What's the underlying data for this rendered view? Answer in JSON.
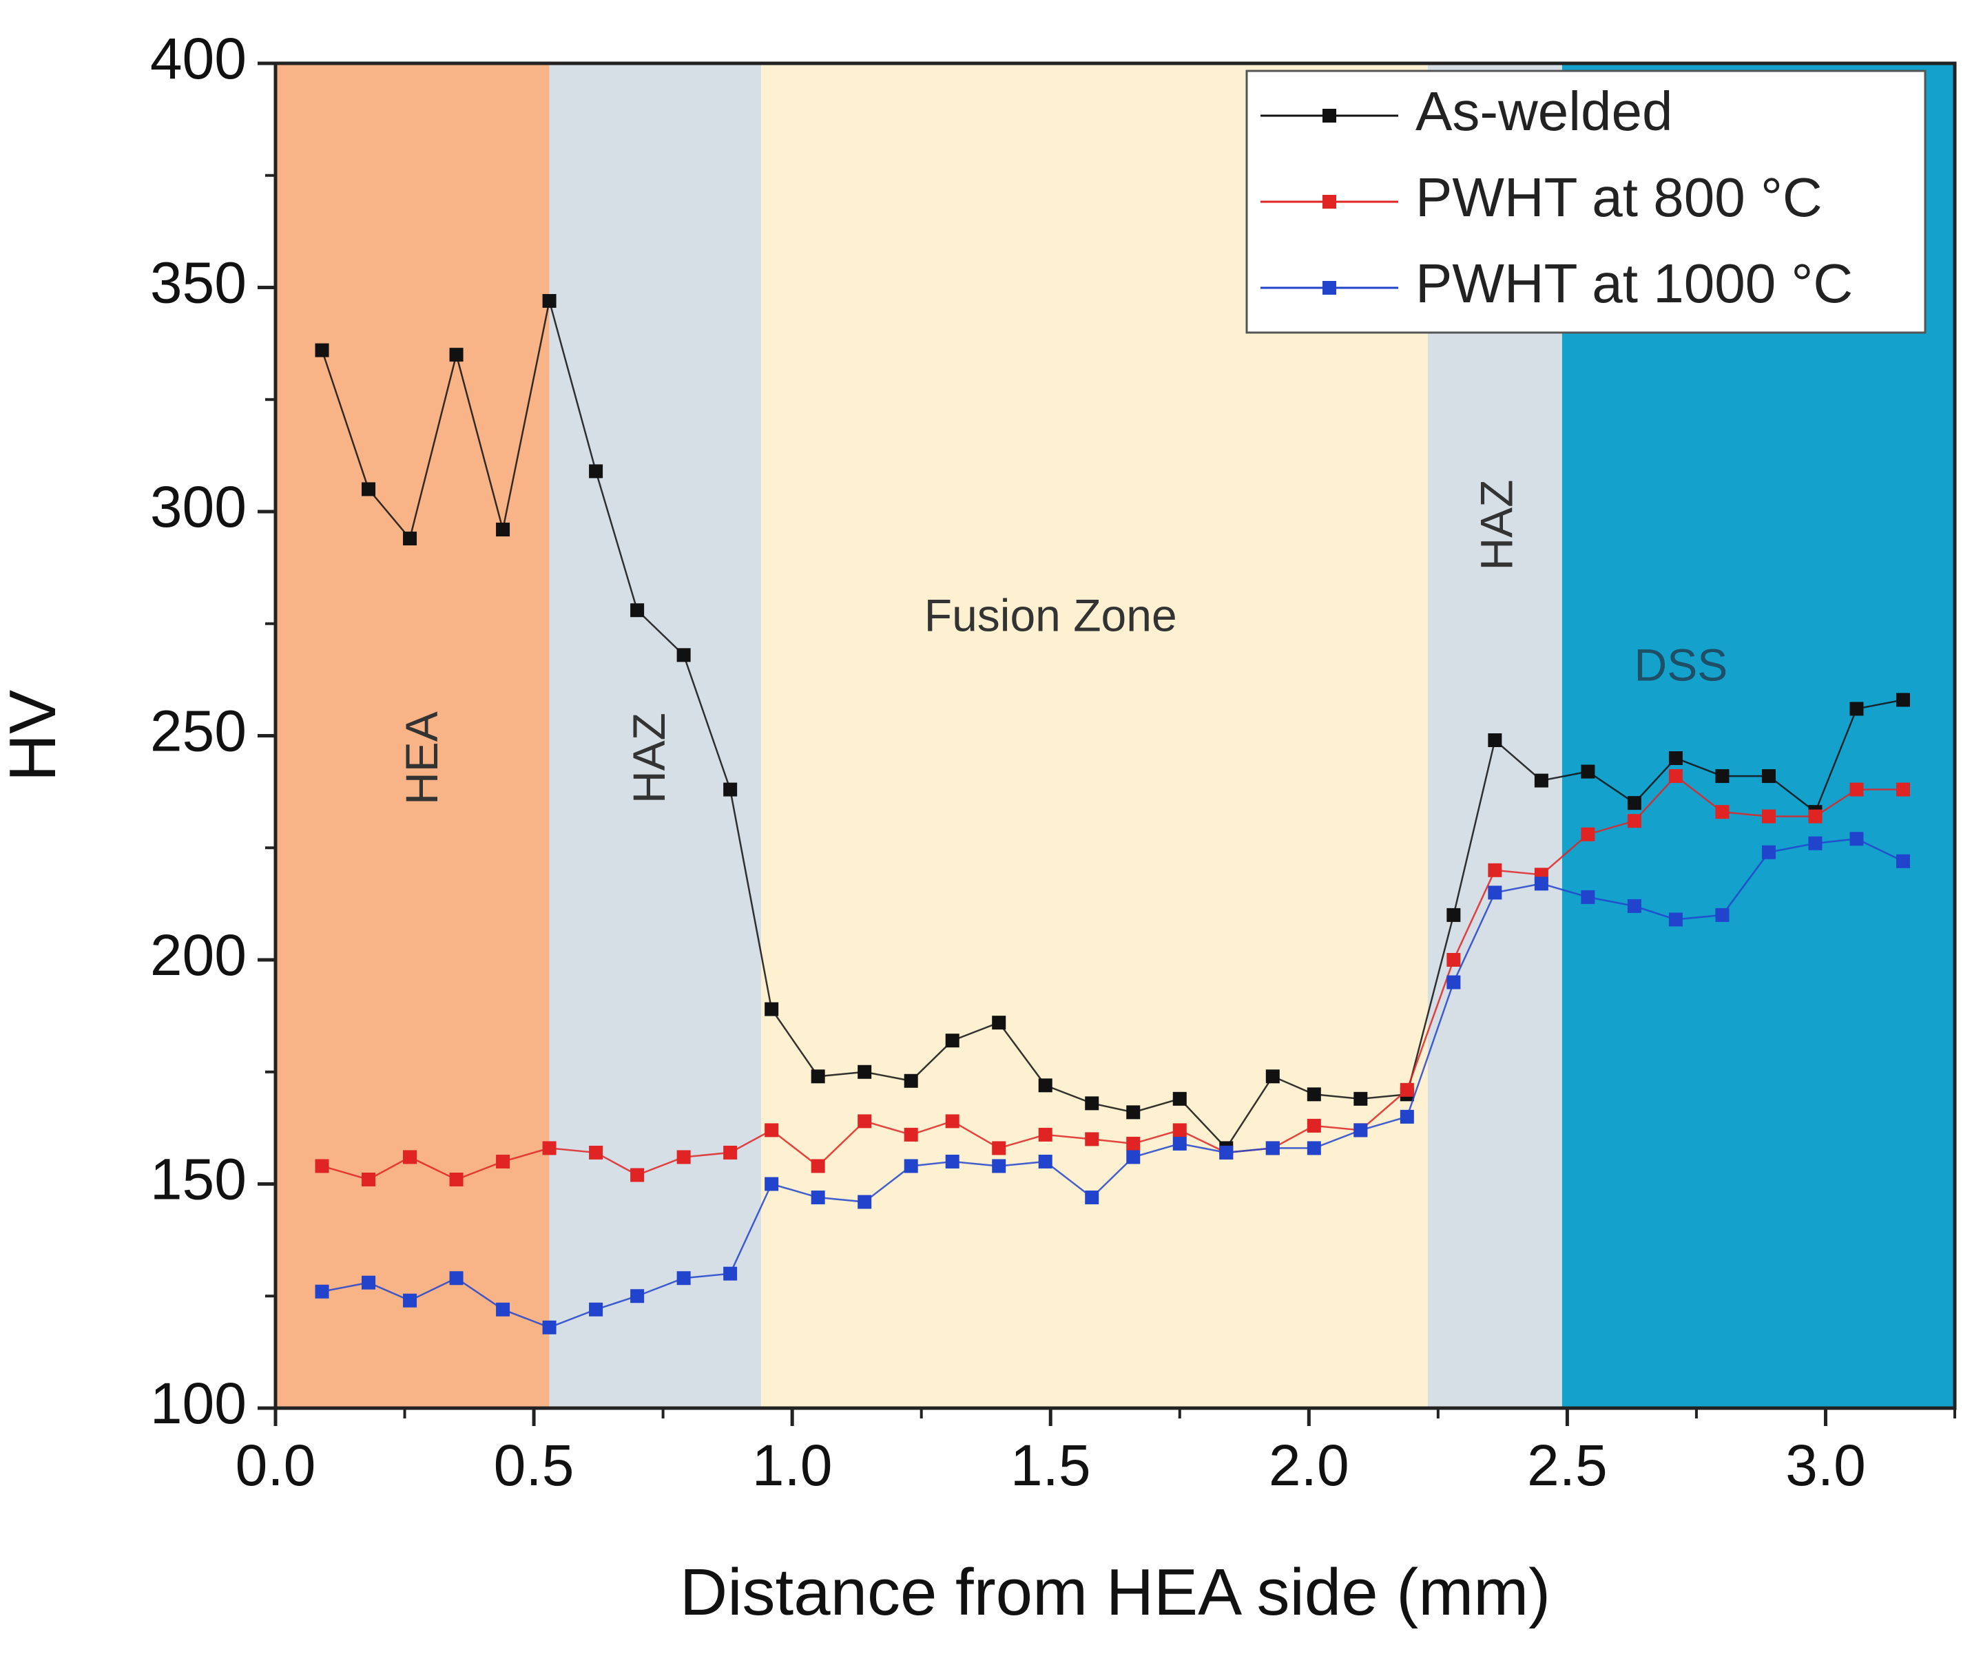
{
  "chart_data": {
    "type": "line",
    "title": "",
    "xlabel": "Distance from HEA side (mm)",
    "ylabel": "HV",
    "xlim": [
      0.0,
      3.25
    ],
    "ylim": [
      100,
      400
    ],
    "xticks": [
      0.0,
      0.5,
      1.0,
      1.5,
      2.0,
      2.5,
      3.0
    ],
    "xtick_labels": [
      "0.0",
      "0.5",
      "1.0",
      "1.5",
      "2.0",
      "2.5",
      "3.0"
    ],
    "yticks": [
      100,
      150,
      200,
      250,
      300,
      350,
      400
    ],
    "ytick_labels": [
      "100",
      "150",
      "200",
      "250",
      "300",
      "350",
      "400"
    ],
    "grid": false,
    "legend_position": "top-right",
    "regions": [
      {
        "label": "HEA",
        "x0": 0.0,
        "x1": 0.53,
        "color": "#f8b487",
        "label_x": 0.29,
        "label_y": 245,
        "vertical": true,
        "text_color": "#333333"
      },
      {
        "label": "HAZ",
        "x0": 0.53,
        "x1": 0.94,
        "color": "#d6dfe6",
        "label_x": 0.73,
        "label_y": 245,
        "vertical": true,
        "text_color": "#333333"
      },
      {
        "label": "Fusion Zone",
        "x0": 0.94,
        "x1": 2.23,
        "color": "#fdf1d2",
        "label_x": 1.5,
        "label_y": 276,
        "vertical": false,
        "text_color": "#333333"
      },
      {
        "label": "HAZ",
        "x0": 2.23,
        "x1": 2.49,
        "color": "#d6dfe6",
        "label_x": 2.37,
        "label_y": 297,
        "vertical": true,
        "text_color": "#333333"
      },
      {
        "label": "DSS",
        "x0": 2.49,
        "x1": 3.25,
        "color": "#14a1cc",
        "label_x": 2.72,
        "label_y": 265,
        "vertical": false,
        "text_color": "#1f4f66"
      }
    ],
    "x": [
      0.09,
      0.18,
      0.26,
      0.35,
      0.44,
      0.53,
      0.62,
      0.7,
      0.79,
      0.88,
      0.96,
      1.05,
      1.14,
      1.23,
      1.31,
      1.4,
      1.49,
      1.58,
      1.66,
      1.75,
      1.84,
      1.93,
      2.01,
      2.1,
      2.19,
      2.28,
      2.36,
      2.45,
      2.54,
      2.63,
      2.71,
      2.8,
      2.89,
      2.98,
      3.06,
      3.15
    ],
    "series": [
      {
        "name": "As-welded",
        "color": "#111111",
        "values": [
          336,
          305,
          294,
          335,
          296,
          347,
          309,
          278,
          268,
          238,
          189,
          174,
          175,
          173,
          182,
          186,
          172,
          168,
          166,
          169,
          158,
          174,
          170,
          169,
          170,
          210,
          249,
          240,
          242,
          235,
          245,
          241,
          241,
          233,
          256,
          258
        ]
      },
      {
        "name": "PWHT at 800 °C",
        "color": "#e02424",
        "values": [
          154,
          151,
          156,
          151,
          155,
          158,
          157,
          152,
          156,
          157,
          162,
          154,
          164,
          161,
          164,
          158,
          161,
          160,
          159,
          162,
          157,
          158,
          163,
          162,
          171,
          200,
          220,
          219,
          228,
          231,
          241,
          233,
          232,
          232,
          238,
          238
        ]
      },
      {
        "name": "PWHT at 1000 °C",
        "color": "#2244cc",
        "values": [
          126,
          128,
          124,
          129,
          122,
          118,
          122,
          125,
          129,
          130,
          150,
          147,
          146,
          154,
          155,
          154,
          155,
          147,
          156,
          159,
          157,
          158,
          158,
          162,
          165,
          195,
          215,
          217,
          214,
          212,
          209,
          210,
          224,
          226,
          227,
          222
        ]
      }
    ]
  }
}
